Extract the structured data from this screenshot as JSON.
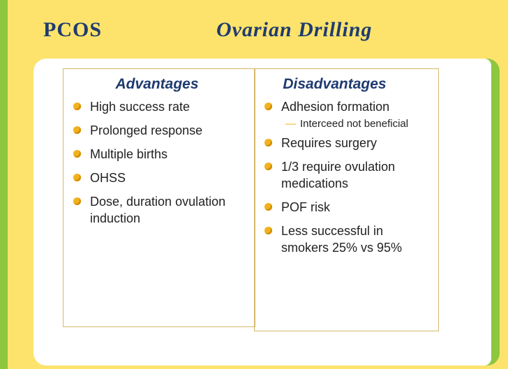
{
  "header": {
    "title_left": "PCOS",
    "title_right": "Ovarian Drilling"
  },
  "columns": [
    {
      "heading": "Advantages",
      "items": [
        {
          "text": "High success rate"
        },
        {
          "text": "Prolonged response"
        },
        {
          "text": "Multiple births"
        },
        {
          "text": "OHSS"
        },
        {
          "text": "Dose, duration ovulation induction"
        }
      ]
    },
    {
      "heading": "Disadvantages",
      "items": [
        {
          "text": "Adhesion formation",
          "sub": "Interceed not beneficial"
        },
        {
          "text": "Requires surgery"
        },
        {
          "text": "1/3 require ovulation medications"
        },
        {
          "text": "POF risk"
        },
        {
          "text": "Less successful in smokers 25% vs 95%"
        }
      ]
    }
  ]
}
